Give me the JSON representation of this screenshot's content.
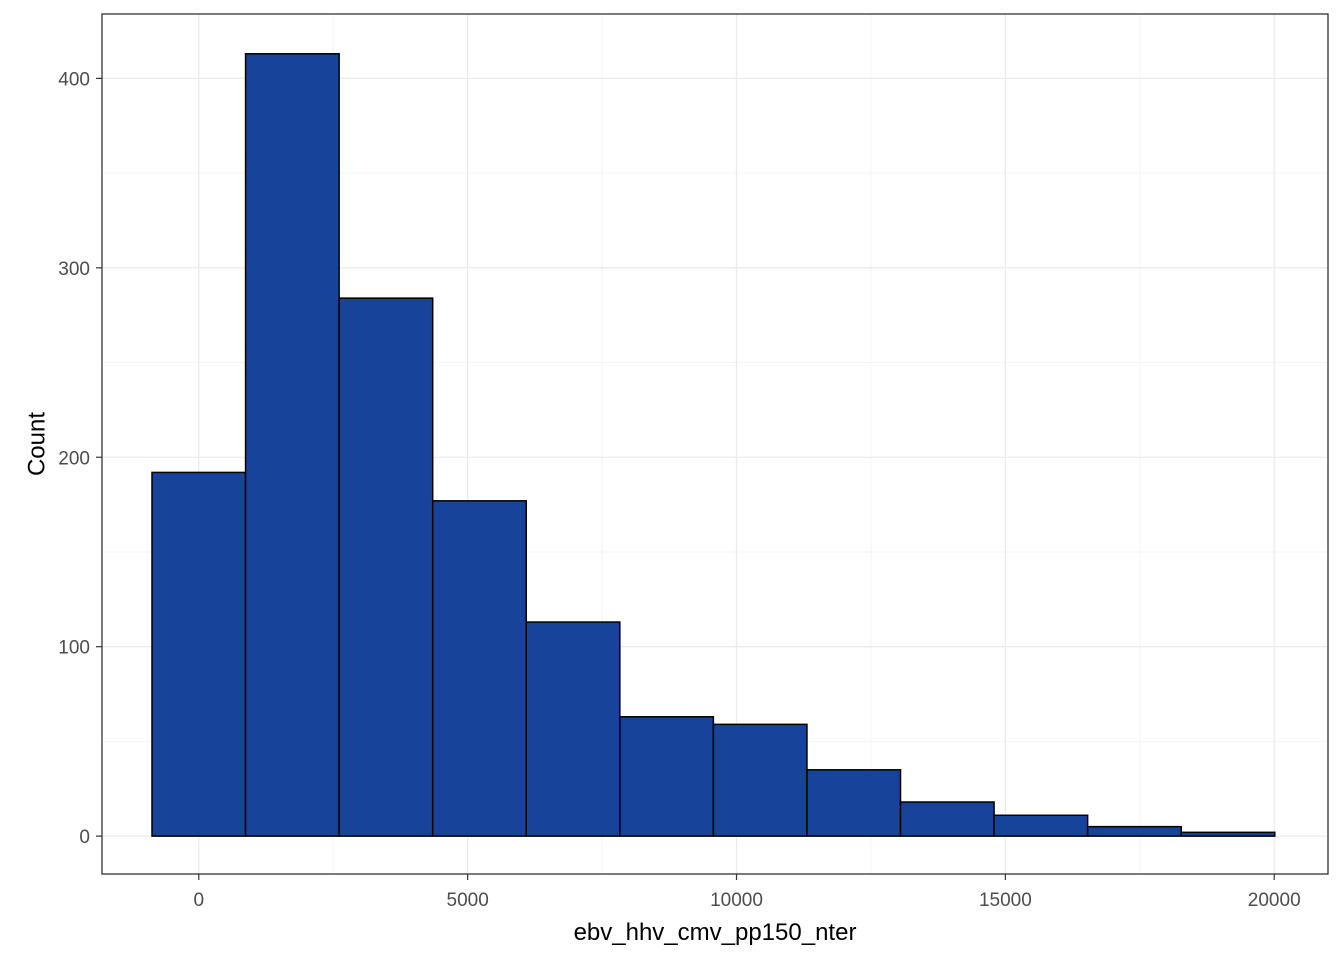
{
  "chart_data": {
    "type": "bar",
    "subtype": "histogram",
    "xlabel": "ebv_hhv_cmv_pp150_nter",
    "ylabel": "Count",
    "xlim": [
      -1800,
      21000
    ],
    "ylim": [
      -20,
      434
    ],
    "x_ticks": [
      0,
      5000,
      10000,
      15000,
      20000
    ],
    "x_tick_labels": [
      "0",
      "5000",
      "10000",
      "15000",
      "20000"
    ],
    "y_ticks": [
      0,
      100,
      200,
      300,
      400
    ],
    "y_tick_labels": [
      "0",
      "100",
      "200",
      "300",
      "400"
    ],
    "x_minor": [
      2500,
      7500,
      12500,
      17500
    ],
    "y_minor": [
      50,
      150,
      250,
      350
    ],
    "grid": true,
    "bar_fill": "#17449a",
    "bar_stroke": "#000000",
    "bins": [
      {
        "x0": -870,
        "x1": 870,
        "count": 192
      },
      {
        "x0": 870,
        "x1": 2610,
        "count": 413
      },
      {
        "x0": 2610,
        "x1": 4350,
        "count": 284
      },
      {
        "x0": 4350,
        "x1": 6090,
        "count": 177
      },
      {
        "x0": 6090,
        "x1": 7830,
        "count": 113
      },
      {
        "x0": 7830,
        "x1": 9570,
        "count": 63
      },
      {
        "x0": 9570,
        "x1": 11310,
        "count": 59
      },
      {
        "x0": 11310,
        "x1": 13050,
        "count": 35
      },
      {
        "x0": 13050,
        "x1": 14790,
        "count": 18
      },
      {
        "x0": 14790,
        "x1": 16530,
        "count": 11
      },
      {
        "x0": 16530,
        "x1": 18270,
        "count": 5
      },
      {
        "x0": 18270,
        "x1": 20010,
        "count": 2
      }
    ]
  }
}
